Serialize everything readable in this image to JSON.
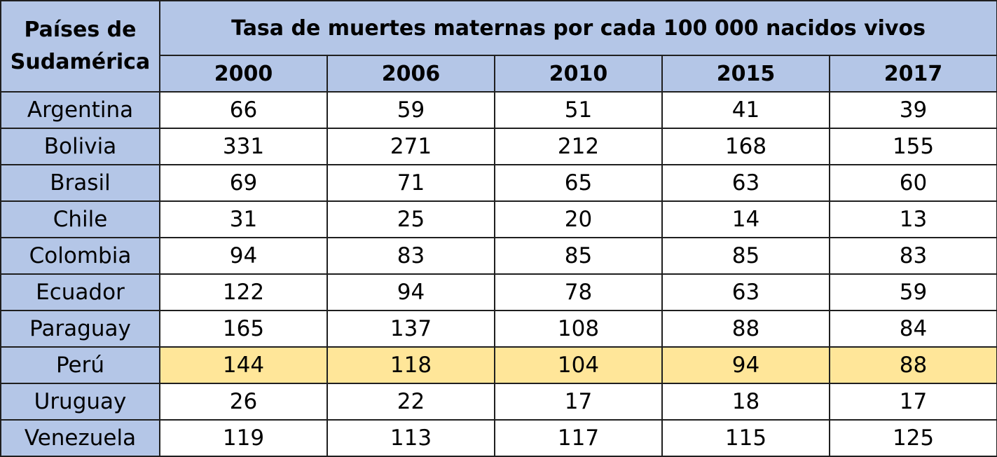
{
  "table": {
    "corner_line1": "Países de",
    "corner_line2": "Sudamérica",
    "title": "Tasa de muertes maternas por cada 100 000 nacidos vivos",
    "years": [
      "2000",
      "2006",
      "2010",
      "2015",
      "2017"
    ],
    "highlight_color": "#ffe699",
    "header_color": "#b4c6e7",
    "rows": [
      {
        "country": "Argentina",
        "values": [
          "66",
          "59",
          "51",
          "41",
          "39"
        ]
      },
      {
        "country": "Bolivia",
        "values": [
          "331",
          "271",
          "212",
          "168",
          "155"
        ]
      },
      {
        "country": "Brasil",
        "values": [
          "69",
          "71",
          "65",
          "63",
          "60"
        ]
      },
      {
        "country": "Chile",
        "values": [
          "31",
          "25",
          "20",
          "14",
          "13"
        ]
      },
      {
        "country": "Colombia",
        "values": [
          "94",
          "83",
          "85",
          "85",
          "83"
        ]
      },
      {
        "country": "Ecuador",
        "values": [
          "122",
          "94",
          "78",
          "63",
          "59"
        ]
      },
      {
        "country": "Paraguay",
        "values": [
          "165",
          "137",
          "108",
          "88",
          "84"
        ]
      },
      {
        "country": "Perú",
        "values": [
          "144",
          "118",
          "104",
          "94",
          "88"
        ],
        "highlighted": true
      },
      {
        "country": "Uruguay",
        "values": [
          "26",
          "22",
          "17",
          "18",
          "17"
        ]
      },
      {
        "country": "Venezuela",
        "values": [
          "119",
          "113",
          "117",
          "115",
          "125"
        ]
      }
    ]
  }
}
